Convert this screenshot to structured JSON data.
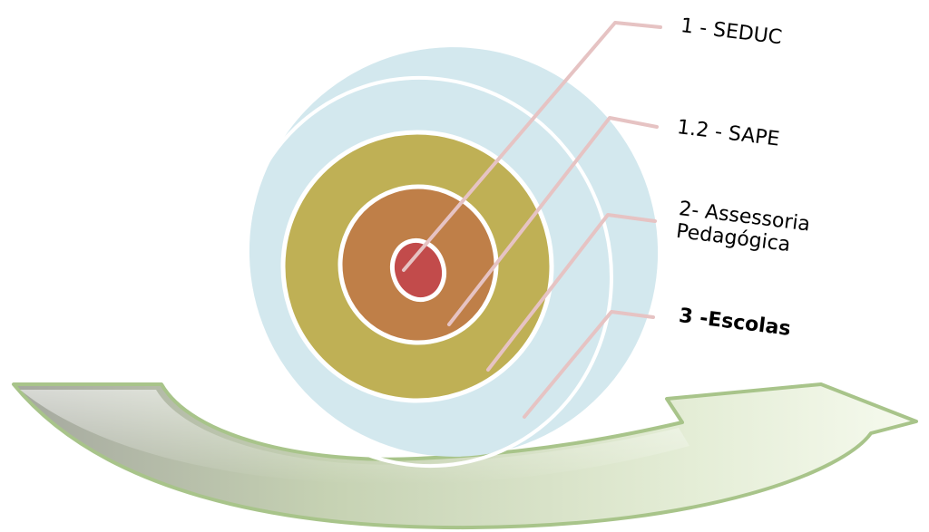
{
  "levels": [
    {
      "label_lines": [
        "1 - SEDUC"
      ],
      "bold": false
    },
    {
      "label_lines": [
        "1.2 - SAPE"
      ],
      "bold": false
    },
    {
      "label_lines": [
        "2- Assessoria",
        "Pedagógica"
      ],
      "bold": false
    },
    {
      "label_lines": [
        "3 -Escolas"
      ],
      "bold": true
    }
  ],
  "colors": {
    "ring_outer": "#d3e8ee",
    "ring_escolas": "#bfb055",
    "ring_sape": "#bf7f48",
    "core_seduc": "#c24b4b",
    "separator": "#ffffff",
    "leader_line": "#e6c3c3",
    "arrow_light": "#f3f7e9",
    "arrow_mid": "#c6d2b3",
    "arrow_dark": "#98b07f",
    "arrow_border": "#a8c48a"
  }
}
